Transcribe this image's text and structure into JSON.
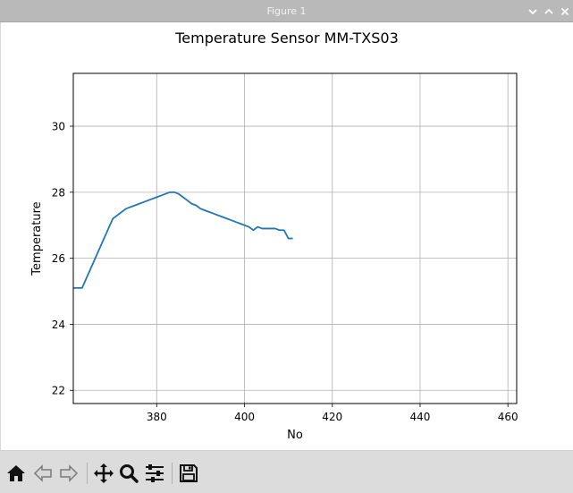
{
  "window": {
    "title": "Figure 1",
    "controls": [
      "minimize",
      "maximize",
      "close"
    ]
  },
  "toolbar": {
    "buttons": [
      {
        "name": "home-button",
        "icon": "home-icon"
      },
      {
        "name": "back-button",
        "icon": "back-arrow-icon"
      },
      {
        "name": "forward-button",
        "icon": "forward-arrow-icon"
      },
      {
        "name": "pan-button",
        "icon": "move-icon"
      },
      {
        "name": "zoom-button",
        "icon": "magnifier-icon"
      },
      {
        "name": "configure-subplots-button",
        "icon": "sliders-icon"
      },
      {
        "name": "save-button",
        "icon": "floppy-disk-icon"
      }
    ]
  },
  "chart_data": {
    "type": "line",
    "title": "Temperature Sensor MM-TXS03",
    "xlabel": "No",
    "ylabel": "Temperature",
    "xlim": [
      361,
      462
    ],
    "ylim": [
      21.6,
      31.6
    ],
    "xticks": [
      380,
      400,
      420,
      440,
      460
    ],
    "yticks": [
      22,
      24,
      26,
      28,
      30
    ],
    "grid": true,
    "line_color": "#1f77b4",
    "series": [
      {
        "x": [
          361,
          362,
          363,
          364,
          365,
          366,
          367,
          368,
          369,
          370,
          371,
          372,
          373,
          374,
          375,
          376,
          377,
          378,
          379,
          380,
          381,
          382,
          383,
          384,
          385,
          386,
          387,
          388,
          389,
          390,
          391,
          392,
          393,
          394,
          395,
          396,
          397,
          398,
          399,
          400,
          401,
          402,
          403,
          404,
          405,
          406,
          407,
          408,
          409,
          410,
          411
        ],
        "values": [
          25.1,
          25.1,
          25.1,
          25.4,
          25.7,
          26.0,
          26.3,
          26.6,
          26.9,
          27.2,
          27.3,
          27.4,
          27.5,
          27.55,
          27.6,
          27.65,
          27.7,
          27.75,
          27.8,
          27.85,
          27.9,
          27.95,
          28.0,
          28.0,
          27.95,
          27.85,
          27.75,
          27.65,
          27.6,
          27.5,
          27.45,
          27.4,
          27.35,
          27.3,
          27.25,
          27.2,
          27.15,
          27.1,
          27.05,
          27.0,
          26.95,
          26.85,
          26.95,
          26.9,
          26.9,
          26.9,
          26.9,
          26.85,
          26.85,
          26.6,
          26.6
        ]
      }
    ]
  }
}
